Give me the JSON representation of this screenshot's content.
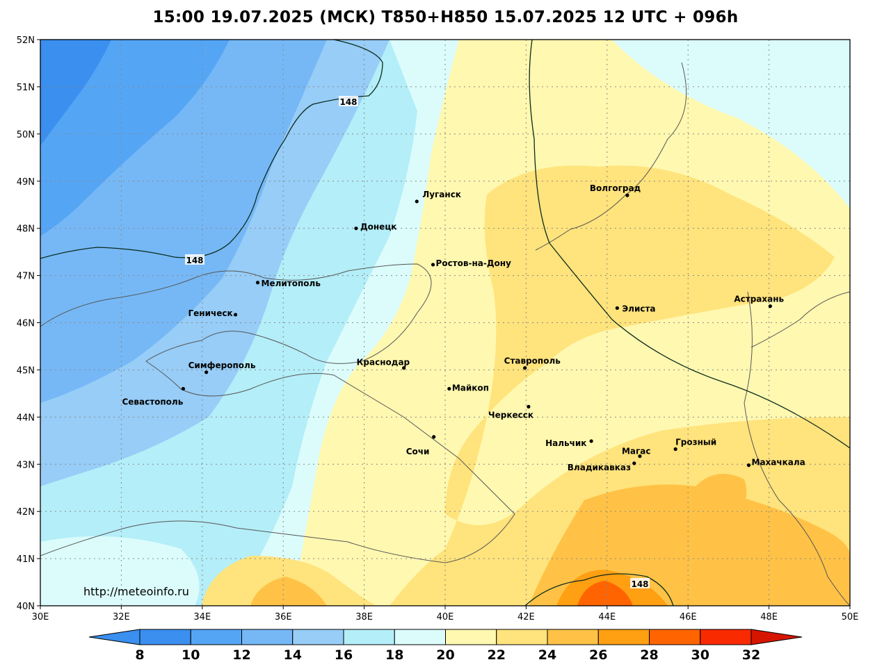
{
  "title": "15:00 19.07.2025 (МСК) T850+H850 15.07.2025 12 UTC + 096h",
  "url": "http://meteoinfo.ru",
  "map": {
    "lon_range": [
      30,
      50
    ],
    "lat_range": [
      40,
      52
    ],
    "lon_ticks": [
      "30E",
      "32E",
      "34E",
      "36E",
      "38E",
      "40E",
      "42E",
      "44E",
      "46E",
      "48E",
      "50E"
    ],
    "lat_ticks": [
      "40N",
      "41N",
      "42N",
      "43N",
      "44N",
      "45N",
      "46N",
      "47N",
      "48N",
      "49N",
      "50N",
      "51N",
      "52N"
    ],
    "grid": true,
    "contour_labels": [
      "148",
      "148",
      "148"
    ],
    "cities": [
      {
        "name": "Волгоград",
        "lon": 44.5,
        "lat": 48.7
      },
      {
        "name": "Луганск",
        "lon": 39.3,
        "lat": 48.57
      },
      {
        "name": "Донецк",
        "lon": 37.8,
        "lat": 48.0
      },
      {
        "name": "Ростов-на-Дону",
        "lon": 39.7,
        "lat": 47.23
      },
      {
        "name": "Мелитополь",
        "lon": 35.37,
        "lat": 46.85
      },
      {
        "name": "Элиста",
        "lon": 44.25,
        "lat": 46.31
      },
      {
        "name": "Астрахань",
        "lon": 48.03,
        "lat": 46.35
      },
      {
        "name": "Геническ",
        "lon": 34.82,
        "lat": 46.17
      },
      {
        "name": "Краснодар",
        "lon": 38.98,
        "lat": 45.04
      },
      {
        "name": "Ставрополь",
        "lon": 41.97,
        "lat": 45.04
      },
      {
        "name": "Симферополь",
        "lon": 34.1,
        "lat": 44.95
      },
      {
        "name": "Майкоп",
        "lon": 40.1,
        "lat": 44.6
      },
      {
        "name": "Севастополь",
        "lon": 33.53,
        "lat": 44.6
      },
      {
        "name": "Черкесск",
        "lon": 42.06,
        "lat": 44.22
      },
      {
        "name": "Сочи",
        "lon": 39.72,
        "lat": 43.58
      },
      {
        "name": "Нальчик",
        "lon": 43.61,
        "lat": 43.49
      },
      {
        "name": "Грозный",
        "lon": 45.69,
        "lat": 43.32
      },
      {
        "name": "Магас",
        "lon": 44.81,
        "lat": 43.17
      },
      {
        "name": "Владикавказ",
        "lon": 44.67,
        "lat": 43.02
      },
      {
        "name": "Махачкала",
        "lon": 47.5,
        "lat": 42.98
      }
    ]
  },
  "colorbar": {
    "labels": [
      "8",
      "10",
      "12",
      "14",
      "16",
      "18",
      "20",
      "22",
      "24",
      "26",
      "28",
      "30",
      "32"
    ],
    "colors": [
      "#3a8fef",
      "#3a8fef",
      "#55a5f5",
      "#76b8f6",
      "#97cdf7",
      "#b4eef8",
      "#dcfcfc",
      "#fff8b0",
      "#ffe37c",
      "#ffc246",
      "#ff9f12",
      "#ff6400",
      "#fa2a00",
      "#d61500"
    ]
  }
}
